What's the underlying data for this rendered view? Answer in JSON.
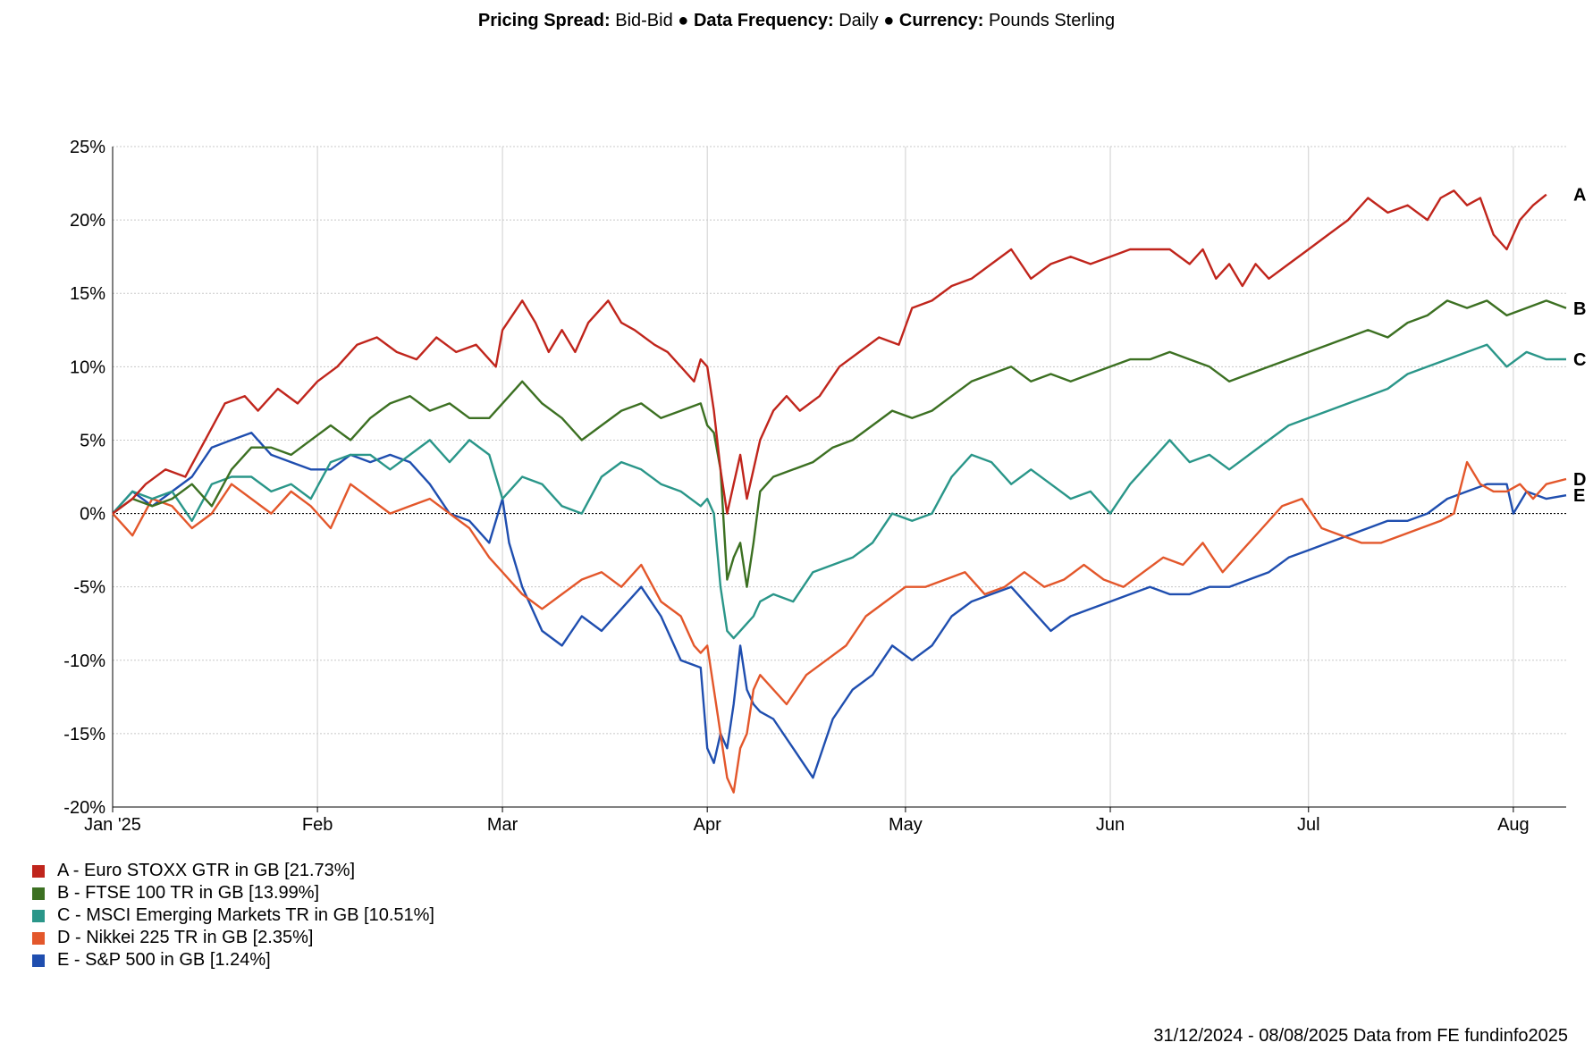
{
  "header": {
    "spread_label": "Pricing Spread:",
    "spread_value": "Bid-Bid",
    "freq_label": "Data Frequency:",
    "freq_value": "Daily",
    "currency_label": "Currency:",
    "currency_value": "Pounds Sterling",
    "separator": "●"
  },
  "footer": {
    "text": "31/12/2024 - 08/08/2025 Data from FE fundinfo2025"
  },
  "chart_data": {
    "type": "line",
    "title": "",
    "xlabel": "",
    "ylabel": "",
    "ylim": [
      -20,
      25
    ],
    "yticks": [
      25,
      20,
      15,
      10,
      5,
      0,
      -5,
      -10,
      -15,
      -20
    ],
    "ytick_labels": [
      "25%",
      "20%",
      "15%",
      "10%",
      "5%",
      "0%",
      "-5%",
      "-10%",
      "-15%",
      "-20%"
    ],
    "xlim": [
      0,
      220
    ],
    "xticks": [
      {
        "t": 0,
        "label": "Jan '25"
      },
      {
        "t": 31,
        "label": "Feb"
      },
      {
        "t": 59,
        "label": "Mar"
      },
      {
        "t": 90,
        "label": "Apr"
      },
      {
        "t": 120,
        "label": "May"
      },
      {
        "t": 151,
        "label": "Jun"
      },
      {
        "t": 181,
        "label": "Jul"
      },
      {
        "t": 212,
        "label": "Aug"
      }
    ],
    "zero_line": true,
    "grid": true,
    "series": [
      {
        "letter": "A",
        "name": "Euro STOXX GTR in GB",
        "final": "21.73%",
        "color": "#c0251c",
        "t": [
          0,
          3,
          5,
          8,
          11,
          14,
          17,
          20,
          22,
          25,
          28,
          31,
          34,
          37,
          40,
          43,
          46,
          49,
          52,
          55,
          58,
          59,
          62,
          64,
          66,
          68,
          70,
          72,
          75,
          77,
          79,
          82,
          84,
          86,
          88,
          89,
          90,
          91,
          92,
          93,
          94,
          95,
          96,
          97,
          98,
          100,
          102,
          104,
          107,
          110,
          113,
          116,
          119,
          121,
          124,
          127,
          130,
          133,
          136,
          139,
          142,
          145,
          148,
          151,
          154,
          157,
          160,
          163,
          165,
          167,
          169,
          171,
          173,
          175,
          178,
          181,
          184,
          187,
          190,
          193,
          196,
          199,
          201,
          203,
          205,
          207,
          209,
          211,
          213,
          215,
          217,
          219,
          220
        ],
        "v": [
          0,
          1,
          2,
          3,
          2.5,
          5,
          7.5,
          8,
          7,
          8.5,
          7.5,
          9,
          10,
          11.5,
          12,
          11,
          10.5,
          12,
          11,
          11.5,
          10,
          12.5,
          14.5,
          13,
          11,
          12.5,
          11,
          13,
          14.5,
          13,
          12.5,
          11.5,
          11,
          10,
          9,
          10.5,
          10,
          7,
          3,
          0,
          2,
          4,
          1,
          3,
          5,
          7,
          8,
          7,
          8,
          10,
          11,
          12,
          11.5,
          14,
          14.5,
          15.5,
          16,
          17,
          18,
          16,
          17,
          17.5,
          17,
          17.5,
          18,
          18,
          18,
          17,
          18,
          16,
          17,
          15.5,
          17,
          16,
          17,
          18,
          19,
          20,
          21.5,
          20.5,
          21,
          20,
          21.5,
          22,
          21,
          21.5,
          19,
          18,
          20,
          21,
          21.73
        ]
      },
      {
        "letter": "B",
        "name": "FTSE 100 TR in GB",
        "final": "13.99%",
        "color": "#3c7022",
        "t": [
          0,
          3,
          6,
          9,
          12,
          15,
          18,
          21,
          24,
          27,
          30,
          33,
          36,
          39,
          42,
          45,
          48,
          51,
          54,
          57,
          59,
          62,
          65,
          68,
          71,
          74,
          77,
          80,
          83,
          86,
          89,
          90,
          91,
          92,
          93,
          94,
          95,
          96,
          97,
          98,
          100,
          103,
          106,
          109,
          112,
          115,
          118,
          121,
          124,
          127,
          130,
          133,
          136,
          139,
          142,
          145,
          148,
          151,
          154,
          157,
          160,
          163,
          166,
          169,
          172,
          175,
          178,
          181,
          184,
          187,
          190,
          193,
          196,
          199,
          202,
          205,
          208,
          211,
          214,
          217,
          220
        ],
        "v": [
          0,
          1,
          0.5,
          1,
          2,
          0.5,
          3,
          4.5,
          4.5,
          4,
          5,
          6,
          5,
          6.5,
          7.5,
          8,
          7,
          7.5,
          6.5,
          6.5,
          7.5,
          9,
          7.5,
          6.5,
          5,
          6,
          7,
          7.5,
          6.5,
          7,
          7.5,
          6,
          5.5,
          3,
          -4.5,
          -3,
          -2,
          -5,
          -2,
          1.5,
          2.5,
          3,
          3.5,
          4.5,
          5,
          6,
          7,
          6.5,
          7,
          8,
          9,
          9.5,
          10,
          9,
          9.5,
          9,
          9.5,
          10,
          10.5,
          10.5,
          11,
          10.5,
          10,
          9,
          9.5,
          10,
          10.5,
          11,
          11.5,
          12,
          12.5,
          12,
          13,
          13.5,
          14.5,
          14,
          14.5,
          13.5,
          14,
          14.5,
          13.99
        ]
      },
      {
        "letter": "C",
        "name": "MSCI Emerging Markets TR in GB",
        "final": "10.51%",
        "color": "#2a9689",
        "t": [
          0,
          3,
          6,
          9,
          12,
          15,
          18,
          21,
          24,
          27,
          30,
          33,
          36,
          39,
          42,
          45,
          48,
          51,
          54,
          57,
          59,
          62,
          65,
          68,
          71,
          74,
          77,
          80,
          83,
          86,
          89,
          90,
          91,
          92,
          93,
          94,
          95,
          96,
          97,
          98,
          100,
          103,
          106,
          109,
          112,
          115,
          118,
          121,
          124,
          127,
          130,
          133,
          136,
          139,
          142,
          145,
          148,
          151,
          154,
          157,
          160,
          163,
          166,
          169,
          172,
          175,
          178,
          181,
          184,
          187,
          190,
          193,
          196,
          199,
          202,
          205,
          208,
          211,
          214,
          217,
          220
        ],
        "v": [
          0,
          1.5,
          1,
          1.5,
          -0.5,
          2,
          2.5,
          2.5,
          1.5,
          2,
          1,
          3.5,
          4,
          4,
          3,
          4,
          5,
          3.5,
          5,
          4,
          1,
          2.5,
          2,
          0.5,
          0,
          2.5,
          3.5,
          3,
          2,
          1.5,
          0.5,
          1,
          0,
          -5,
          -8,
          -8.5,
          -8,
          -7.5,
          -7,
          -6,
          -5.5,
          -6,
          -4,
          -3.5,
          -3,
          -2,
          0,
          -0.5,
          0,
          2.5,
          4,
          3.5,
          2,
          3,
          2,
          1,
          1.5,
          0,
          2,
          3.5,
          5,
          3.5,
          4,
          3,
          4,
          5,
          6,
          6.5,
          7,
          7.5,
          8,
          8.5,
          9.5,
          10,
          10.5,
          11,
          11.5,
          10,
          11,
          10.5,
          10.51
        ]
      },
      {
        "letter": "D",
        "name": "Nikkei 225 TR in GB",
        "final": "2.35%",
        "color": "#e3572b",
        "t": [
          0,
          3,
          6,
          9,
          12,
          15,
          18,
          21,
          24,
          27,
          30,
          33,
          36,
          39,
          42,
          45,
          48,
          51,
          54,
          57,
          59,
          62,
          65,
          68,
          71,
          74,
          77,
          80,
          83,
          86,
          88,
          89,
          90,
          91,
          92,
          93,
          94,
          95,
          96,
          97,
          98,
          100,
          102,
          105,
          108,
          111,
          114,
          117,
          120,
          123,
          126,
          129,
          132,
          135,
          138,
          141,
          144,
          147,
          150,
          153,
          156,
          159,
          162,
          165,
          168,
          171,
          174,
          177,
          180,
          183,
          186,
          189,
          192,
          195,
          198,
          201,
          203,
          205,
          207,
          209,
          211,
          213,
          215,
          217,
          220
        ],
        "v": [
          0,
          -1.5,
          1,
          0.5,
          -1,
          0,
          2,
          1,
          0,
          1.5,
          0.5,
          -1,
          2,
          1,
          0,
          0.5,
          1,
          0,
          -1,
          -3,
          -4,
          -5.5,
          -6.5,
          -5.5,
          -4.5,
          -4,
          -5,
          -3.5,
          -6,
          -7,
          -9,
          -9.5,
          -9,
          -12,
          -15,
          -18,
          -19,
          -16,
          -15,
          -12,
          -11,
          -12,
          -13,
          -11,
          -10,
          -9,
          -7,
          -6,
          -5,
          -5,
          -4.5,
          -4,
          -5.5,
          -5,
          -4,
          -5,
          -4.5,
          -3.5,
          -4.5,
          -5,
          -4,
          -3,
          -3.5,
          -2,
          -4,
          -2.5,
          -1,
          0.5,
          1,
          -1,
          -1.5,
          -2,
          -2,
          -1.5,
          -1,
          -0.5,
          0,
          3.5,
          2,
          1.5,
          1.5,
          2,
          1,
          2,
          2.35
        ]
      },
      {
        "letter": "E",
        "name": "S&P 500 in GB",
        "final": "1.24%",
        "color": "#1f4eaf",
        "t": [
          0,
          3,
          6,
          9,
          12,
          15,
          18,
          21,
          24,
          27,
          30,
          33,
          36,
          39,
          42,
          45,
          48,
          51,
          54,
          57,
          59,
          60,
          62,
          65,
          68,
          71,
          74,
          77,
          80,
          83,
          86,
          89,
          90,
          91,
          92,
          93,
          94,
          95,
          96,
          97,
          98,
          100,
          103,
          106,
          109,
          112,
          115,
          118,
          121,
          124,
          127,
          130,
          133,
          136,
          139,
          142,
          145,
          148,
          151,
          154,
          157,
          160,
          163,
          166,
          169,
          172,
          175,
          178,
          181,
          184,
          187,
          190,
          193,
          196,
          199,
          202,
          205,
          208,
          211,
          212,
          214,
          217,
          220
        ],
        "v": [
          0,
          1.5,
          0.5,
          1.5,
          2.5,
          4.5,
          5,
          5.5,
          4,
          3.5,
          3,
          3,
          4,
          3.5,
          4,
          3.5,
          2,
          0,
          -0.5,
          -2,
          1,
          -2,
          -5,
          -8,
          -9,
          -7,
          -8,
          -6.5,
          -5,
          -7,
          -10,
          -10.5,
          -16,
          -17,
          -15,
          -16,
          -13,
          -9,
          -12,
          -13,
          -13.5,
          -14,
          -16,
          -18,
          -14,
          -12,
          -11,
          -9,
          -10,
          -9,
          -7,
          -6,
          -5.5,
          -5,
          -6.5,
          -8,
          -7,
          -6.5,
          -6,
          -5.5,
          -5,
          -5.5,
          -5.5,
          -5,
          -5,
          -4.5,
          -4,
          -3,
          -2.5,
          -2,
          -1.5,
          -1,
          -0.5,
          -0.5,
          0,
          1,
          1.5,
          2,
          2,
          0,
          1.5,
          1,
          1.24
        ]
      }
    ]
  }
}
